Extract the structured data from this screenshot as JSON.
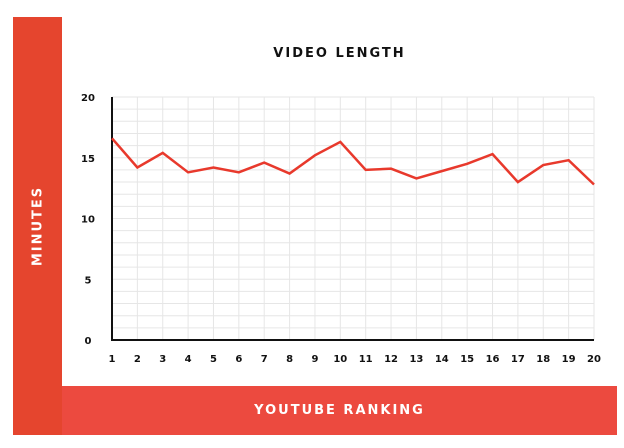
{
  "chart_data": {
    "type": "line",
    "title": "VIDEO LENGTH",
    "xlabel": "YOUTUBE RANKING",
    "ylabel": "MINUTES",
    "x": [
      1,
      2,
      3,
      4,
      5,
      6,
      7,
      8,
      9,
      10,
      11,
      12,
      13,
      14,
      15,
      16,
      17,
      18,
      19,
      20
    ],
    "y": [
      16.6,
      14.2,
      15.4,
      13.8,
      14.2,
      13.8,
      14.6,
      13.7,
      15.2,
      16.3,
      14.0,
      14.1,
      13.3,
      13.9,
      14.5,
      15.3,
      13.0,
      14.4,
      14.8,
      12.8
    ],
    "yticks": [
      0,
      5,
      10,
      15,
      20
    ],
    "ylim": [
      0,
      20
    ],
    "xlim": [
      1,
      20
    ],
    "grid": true,
    "colors": {
      "line": "#e8392c",
      "left_bar": "#e5452e",
      "bottom_bar": "#ec4a3f"
    }
  }
}
